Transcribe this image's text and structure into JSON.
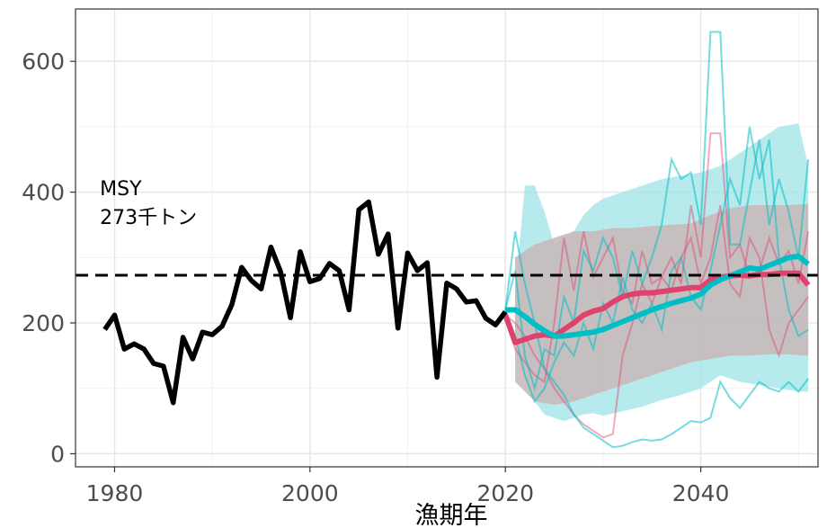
{
  "chart_data": {
    "type": "line",
    "title": "",
    "xlabel": "漁期年",
    "ylabel": "",
    "xlim": [
      1976,
      2052
    ],
    "ylim": [
      -20,
      680
    ],
    "x_ticks": [
      1980,
      2000,
      2020,
      2040
    ],
    "y_ticks": [
      0,
      200,
      400,
      600
    ],
    "grid": true,
    "legend": "none",
    "colors": {
      "historical": "#000000",
      "scenario_a": "#e0426e",
      "scenario_b": "#00bfc4",
      "band_a": "#f8a0a8",
      "band_b": "#9fe3e6",
      "band_overlap": "#bdbdbd",
      "msy_line": "#000000"
    },
    "annotations": [
      {
        "line1": "MSY",
        "line2": "273千トン",
        "x": 1978.5,
        "y": 395
      }
    ],
    "reference_lines": [
      {
        "name": "MSY",
        "y": 273,
        "style": "dashed"
      }
    ],
    "series": [
      {
        "kind": "historical",
        "x": [
          1979,
          1980,
          1981,
          1982,
          1983,
          1984,
          1985,
          1986,
          1987,
          1988,
          1989,
          1990,
          1991,
          1992,
          1993,
          1994,
          1995,
          1996,
          1997,
          1998,
          1999,
          2000,
          2001,
          2002,
          2003,
          2004,
          2005,
          2006,
          2007,
          2008,
          2009,
          2010,
          2011,
          2012,
          2013,
          2014,
          2015,
          2016,
          2017,
          2018,
          2019,
          2020
        ],
        "values": [
          190,
          212,
          160,
          168,
          160,
          138,
          134,
          78,
          178,
          145,
          186,
          182,
          195,
          228,
          285,
          265,
          252,
          316,
          278,
          208,
          309,
          263,
          268,
          291,
          280,
          220,
          373,
          385,
          305,
          336,
          192,
          307,
          280,
          292,
          117,
          261,
          252,
          232,
          234,
          207,
          197,
          217
        ]
      },
      {
        "kind": "scenario_a_mean",
        "x": [
          2020,
          2021,
          2022,
          2023,
          2024,
          2025,
          2026,
          2027,
          2028,
          2029,
          2030,
          2031,
          2032,
          2033,
          2034,
          2035,
          2036,
          2037,
          2038,
          2039,
          2040,
          2041,
          2042,
          2043,
          2044,
          2045,
          2046,
          2047,
          2048,
          2049,
          2050,
          2051
        ],
        "values": [
          212,
          170,
          175,
          180,
          182,
          180,
          190,
          200,
          212,
          218,
          222,
          232,
          240,
          244,
          246,
          246,
          248,
          250,
          252,
          254,
          254,
          266,
          270,
          272,
          273,
          272,
          274,
          274,
          276,
          276,
          276,
          258
        ]
      },
      {
        "kind": "scenario_b_mean",
        "x": [
          2020,
          2021,
          2022,
          2023,
          2024,
          2025,
          2026,
          2027,
          2028,
          2029,
          2030,
          2031,
          2032,
          2033,
          2034,
          2035,
          2036,
          2037,
          2038,
          2039,
          2040,
          2041,
          2042,
          2043,
          2044,
          2045,
          2046,
          2047,
          2048,
          2049,
          2050,
          2051
        ],
        "values": [
          220,
          220,
          210,
          198,
          188,
          180,
          180,
          182,
          184,
          186,
          190,
          196,
          202,
          208,
          214,
          220,
          225,
          230,
          234,
          238,
          244,
          258,
          266,
          272,
          278,
          284,
          282,
          288,
          294,
          300,
          302,
          290
        ]
      },
      {
        "kind": "scenario_a_trajectory",
        "x": [
          2020,
          2021,
          2022,
          2023,
          2024,
          2025,
          2026,
          2027,
          2028,
          2029,
          2030,
          2031,
          2032,
          2033,
          2034,
          2035,
          2036,
          2037,
          2038,
          2039,
          2040,
          2041,
          2042,
          2043,
          2044,
          2045,
          2046,
          2047,
          2048,
          2049,
          2050,
          2051
        ],
        "values": [
          212,
          160,
          140,
          120,
          110,
          200,
          330,
          250,
          340,
          270,
          300,
          330,
          250,
          230,
          310,
          260,
          270,
          300,
          260,
          380,
          300,
          490,
          490,
          300,
          320,
          270,
          280,
          330,
          290,
          310,
          260,
          340
        ]
      },
      {
        "kind": "scenario_a_trajectory",
        "x": [
          2020,
          2021,
          2022,
          2023,
          2024,
          2025,
          2026,
          2027,
          2028,
          2029,
          2030,
          2031,
          2032,
          2033,
          2034,
          2035,
          2036,
          2037,
          2038,
          2039,
          2040,
          2041,
          2042,
          2043,
          2044,
          2045,
          2046,
          2047,
          2048,
          2049,
          2050,
          2051
        ],
        "values": [
          212,
          200,
          180,
          150,
          130,
          100,
          80,
          60,
          45,
          35,
          25,
          30,
          150,
          200,
          260,
          230,
          270,
          250,
          300,
          330,
          260,
          300,
          380,
          260,
          240,
          330,
          300,
          190,
          150,
          200,
          220,
          240
        ]
      },
      {
        "kind": "scenario_b_trajectory",
        "x": [
          2020,
          2021,
          2022,
          2023,
          2024,
          2025,
          2026,
          2027,
          2028,
          2029,
          2030,
          2031,
          2032,
          2033,
          2034,
          2035,
          2036,
          2037,
          2038,
          2039,
          2040,
          2041,
          2042,
          2043,
          2044,
          2045,
          2046,
          2047,
          2048,
          2049,
          2050,
          2051
        ],
        "values": [
          220,
          340,
          260,
          200,
          130,
          110,
          90,
          60,
          40,
          30,
          20,
          10,
          12,
          18,
          22,
          20,
          22,
          30,
          40,
          50,
          48,
          55,
          110,
          85,
          70,
          90,
          110,
          100,
          95,
          110,
          95,
          115
        ]
      },
      {
        "kind": "scenario_b_trajectory",
        "x": [
          2020,
          2021,
          2022,
          2023,
          2024,
          2025,
          2026,
          2027,
          2028,
          2029,
          2030,
          2031,
          2032,
          2033,
          2034,
          2035,
          2036,
          2037,
          2038,
          2039,
          2040,
          2041,
          2042,
          2043,
          2044,
          2045,
          2046,
          2047,
          2048,
          2049,
          2050,
          2051
        ],
        "values": [
          220,
          280,
          150,
          100,
          160,
          150,
          240,
          200,
          310,
          280,
          330,
          300,
          240,
          310,
          260,
          300,
          350,
          450,
          420,
          430,
          350,
          645,
          645,
          320,
          320,
          400,
          480,
          350,
          420,
          370,
          300,
          450
        ]
      },
      {
        "kind": "scenario_b_trajectory",
        "x": [
          2020,
          2021,
          2022,
          2023,
          2024,
          2025,
          2026,
          2027,
          2028,
          2029,
          2030,
          2031,
          2032,
          2033,
          2034,
          2035,
          2036,
          2037,
          2038,
          2039,
          2040,
          2041,
          2042,
          2043,
          2044,
          2045,
          2046,
          2047,
          2048,
          2049,
          2050,
          2051
        ],
        "values": [
          220,
          180,
          120,
          80,
          100,
          140,
          170,
          150,
          200,
          160,
          230,
          200,
          270,
          220,
          200,
          230,
          190,
          280,
          300,
          240,
          220,
          280,
          350,
          420,
          380,
          500,
          420,
          480,
          300,
          220,
          180,
          190
        ]
      },
      {
        "kind": "band_a",
        "x": [
          2021,
          2023,
          2025,
          2027,
          2029,
          2031,
          2033,
          2035,
          2037,
          2039,
          2041,
          2043,
          2045,
          2047,
          2049,
          2051
        ],
        "lower": [
          110,
          80,
          75,
          80,
          90,
          100,
          110,
          120,
          130,
          140,
          145,
          150,
          150,
          152,
          152,
          150
        ],
        "upper": [
          300,
          320,
          330,
          340,
          340,
          345,
          345,
          348,
          350,
          352,
          365,
          375,
          380,
          380,
          380,
          382
        ]
      },
      {
        "kind": "band_b",
        "x": [
          2021,
          2022,
          2023,
          2024,
          2025,
          2026,
          2027,
          2028,
          2029,
          2030,
          2032,
          2034,
          2036,
          2038,
          2040,
          2042,
          2044,
          2046,
          2048,
          2050,
          2051
        ],
        "lower": [
          190,
          120,
          80,
          60,
          55,
          50,
          55,
          60,
          62,
          58,
          65,
          72,
          82,
          90,
          100,
          120,
          110,
          105,
          100,
          95,
          95
        ],
        "upper": [
          250,
          410,
          410,
          370,
          320,
          330,
          340,
          365,
          380,
          390,
          400,
          410,
          420,
          425,
          430,
          440,
          460,
          480,
          500,
          505,
          440
        ]
      }
    ]
  }
}
